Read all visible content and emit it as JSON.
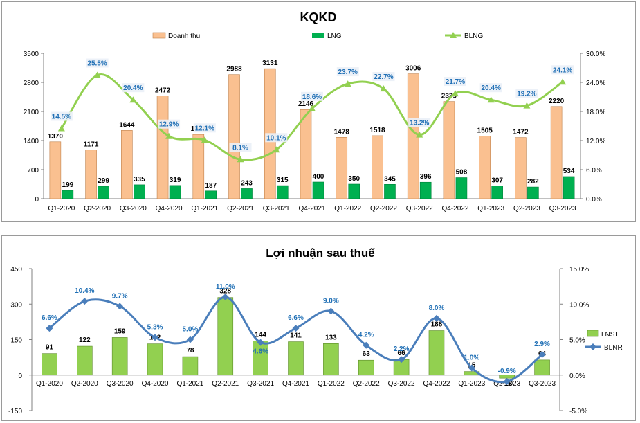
{
  "chart_data": [
    {
      "type": "bar",
      "title": "KQKD",
      "categories": [
        "Q1-2020",
        "Q2-2020",
        "Q3-2020",
        "Q4-2020",
        "Q1-2021",
        "Q2-2021",
        "Q3-2021",
        "Q4-2021",
        "Q1-2022",
        "Q2-2022",
        "Q3-2022",
        "Q4-2022",
        "Q1-2023",
        "Q2-2023",
        "Q3-2023"
      ],
      "series": [
        {
          "name": "Doanh thu",
          "type": "bar",
          "axis": "left",
          "color": "#fac090",
          "values": [
            1370,
            1171,
            1644,
            2472,
            1548,
            2988,
            3131,
            2146,
            1478,
            1518,
            3006,
            2339,
            1505,
            1472,
            2220
          ]
        },
        {
          "name": "LNG",
          "type": "bar",
          "axis": "left",
          "color": "#00b050",
          "values": [
            199,
            299,
            335,
            319,
            187,
            243,
            315,
            400,
            350,
            345,
            396,
            508,
            307,
            282,
            534
          ]
        },
        {
          "name": "BLNG",
          "type": "line",
          "axis": "right",
          "color": "#92d050",
          "values": [
            14.5,
            25.5,
            20.4,
            12.9,
            12.1,
            8.1,
            10.1,
            18.6,
            23.7,
            22.7,
            13.2,
            21.7,
            20.4,
            19.2,
            24.1
          ],
          "labels": [
            "14.5%",
            "25.5%",
            "20.4%",
            "12.9%",
            "12.1%",
            "8.1%",
            "10.1%",
            "18.6%",
            "23.7%",
            "22.7%",
            "13.2%",
            "21.7%",
            "20.4%",
            "19.2%",
            "24.1%"
          ]
        }
      ],
      "ylim": [
        0,
        3500
      ],
      "yticks": [
        "0",
        "700",
        "1400",
        "2100",
        "2800",
        "3500"
      ],
      "ylim_right": [
        0,
        30
      ],
      "yticks_right": [
        "0.0%",
        "6.0%",
        "12.0%",
        "18.0%",
        "24.0%",
        "30.0%"
      ],
      "legend": "top-center",
      "grid": false,
      "label_color": "#1f6fb5"
    },
    {
      "type": "bar",
      "title": "Lợi nhuận sau thuế",
      "categories": [
        "Q1-2020",
        "Q2-2020",
        "Q3-2020",
        "Q4-2020",
        "Q1-2021",
        "Q2-2021",
        "Q3-2021",
        "Q4-2021",
        "Q1-2022",
        "Q2-2022",
        "Q3-2022",
        "Q4-2022",
        "Q1-2023",
        "Q2-2023",
        "Q3-2023"
      ],
      "series": [
        {
          "name": "LNST",
          "type": "bar",
          "axis": "left",
          "color": "#92d050",
          "values": [
            91,
            122,
            159,
            132,
            78,
            328,
            144,
            141,
            133,
            63,
            66,
            188,
            15,
            -13,
            64
          ]
        },
        {
          "name": "BLNR",
          "type": "line",
          "axis": "right",
          "color": "#4a7ebb",
          "values": [
            6.6,
            10.4,
            9.7,
            5.3,
            5.0,
            11.0,
            4.6,
            6.6,
            9.0,
            4.2,
            2.2,
            8.0,
            1.0,
            -0.9,
            2.9
          ],
          "labels": [
            "6.6%",
            "10.4%",
            "9.7%",
            "5.3%",
            "5.0%",
            "11.0%",
            "4.6%",
            "6.6%",
            "9.0%",
            "4.2%",
            "2.2%",
            "8.0%",
            "1.0%",
            "-0.9%",
            "2.9%"
          ]
        }
      ],
      "ylim": [
        -150,
        450
      ],
      "yticks": [
        "-150",
        "0",
        "150",
        "300",
        "450"
      ],
      "ylim_right": [
        -5,
        15
      ],
      "yticks_right": [
        "-5.0%",
        "0.0%",
        "5.0%",
        "10.0%",
        "15.0%"
      ],
      "legend": "right",
      "grid": false,
      "label_color": "#1f6fb5"
    }
  ]
}
